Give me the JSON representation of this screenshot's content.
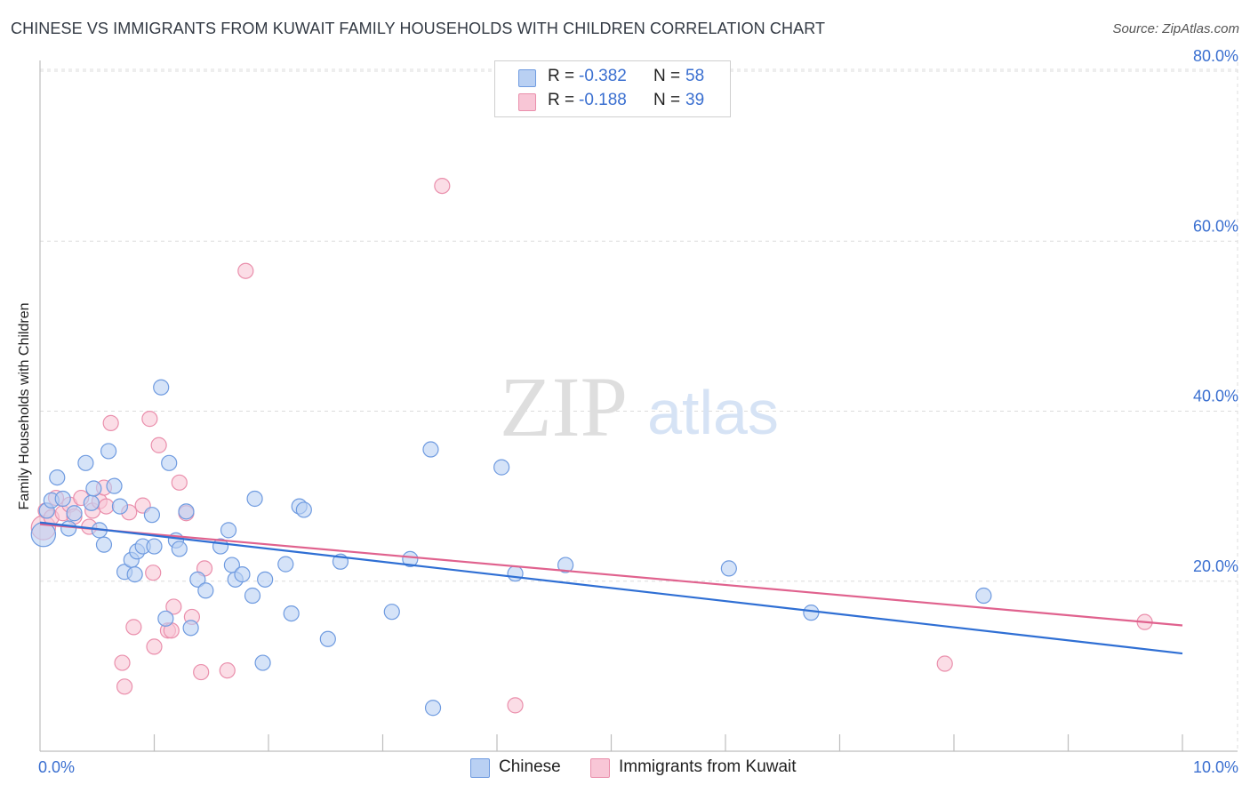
{
  "title": "CHINESE VS IMMIGRANTS FROM KUWAIT FAMILY HOUSEHOLDS WITH CHILDREN CORRELATION CHART",
  "source": "Source: ZipAtlas.com",
  "watermark": {
    "zip": "ZIP",
    "atlas": "atlas"
  },
  "legend": {
    "r_label": "R =",
    "n_label": "N =",
    "series": [
      {
        "name": "Chinese",
        "r": "-0.382",
        "n": "58",
        "fill": "#b9d0f3",
        "stroke": "#6f9be0"
      },
      {
        "name": "Immigrants from Kuwait",
        "r": "-0.188",
        "n": "39",
        "fill": "#f8c6d6",
        "stroke": "#ea8fac"
      }
    ]
  },
  "colors": {
    "blue_line": "#2f6fd4",
    "pink_line": "#e0628e",
    "axis_label": "#3a6fd0",
    "grid": "#dcdcdc"
  },
  "chart_data": {
    "type": "scatter",
    "title": "CHINESE VS IMMIGRANTS FROM KUWAIT FAMILY HOUSEHOLDS WITH CHILDREN CORRELATION CHART",
    "xlabel": "",
    "ylabel": "Family Households with Children",
    "xlim": [
      0,
      10
    ],
    "ylim": [
      0,
      80
    ],
    "x_tick_labels": [
      "0.0%",
      "10.0%"
    ],
    "y_ticks": [
      20,
      40,
      60,
      80
    ],
    "y_tick_labels": [
      "20.0%",
      "40.0%",
      "60.0%",
      "80.0%"
    ],
    "grid": true,
    "series": [
      {
        "name": "Chinese",
        "r": -0.382,
        "n": 58,
        "trend": {
          "x": [
            0,
            10
          ],
          "y": [
            26.9,
            11.5
          ]
        },
        "points": [
          [
            0.03,
            25.5,
            1.6
          ],
          [
            0.06,
            28.3,
            1
          ],
          [
            0.1,
            29.5,
            1
          ],
          [
            0.15,
            32.2,
            1
          ],
          [
            0.2,
            29.7,
            1
          ],
          [
            0.25,
            26.2,
            1
          ],
          [
            0.3,
            28.0,
            1
          ],
          [
            0.4,
            33.9,
            1
          ],
          [
            0.45,
            29.2,
            1
          ],
          [
            0.47,
            30.9,
            1
          ],
          [
            0.52,
            26.0,
            1
          ],
          [
            0.56,
            24.3,
            1
          ],
          [
            0.6,
            35.3,
            1
          ],
          [
            0.65,
            31.2,
            1
          ],
          [
            0.7,
            28.8,
            1
          ],
          [
            0.74,
            21.1,
            1
          ],
          [
            0.8,
            22.5,
            1
          ],
          [
            0.83,
            20.8,
            1
          ],
          [
            0.85,
            23.5,
            1
          ],
          [
            0.9,
            24.1,
            1
          ],
          [
            0.98,
            27.8,
            1
          ],
          [
            1.0,
            24.1,
            1
          ],
          [
            1.06,
            42.8,
            1
          ],
          [
            1.1,
            15.6,
            1
          ],
          [
            1.13,
            33.9,
            1
          ],
          [
            1.19,
            24.8,
            1
          ],
          [
            1.22,
            23.8,
            1
          ],
          [
            1.28,
            28.2,
            1
          ],
          [
            1.32,
            14.5,
            1
          ],
          [
            1.38,
            20.2,
            1
          ],
          [
            1.45,
            18.9,
            1
          ],
          [
            1.58,
            24.1,
            1
          ],
          [
            1.65,
            26.0,
            1
          ],
          [
            1.68,
            21.9,
            1
          ],
          [
            1.71,
            20.2,
            1
          ],
          [
            1.77,
            20.8,
            1
          ],
          [
            1.86,
            18.3,
            1
          ],
          [
            1.88,
            29.7,
            1
          ],
          [
            1.95,
            10.4,
            1
          ],
          [
            1.97,
            20.2,
            1
          ],
          [
            2.15,
            22.0,
            1
          ],
          [
            2.2,
            16.2,
            1
          ],
          [
            2.27,
            28.8,
            1
          ],
          [
            2.31,
            28.4,
            1
          ],
          [
            2.52,
            13.2,
            1
          ],
          [
            2.63,
            22.3,
            1
          ],
          [
            3.08,
            16.4,
            1
          ],
          [
            3.24,
            22.6,
            1
          ],
          [
            3.42,
            35.5,
            1
          ],
          [
            3.44,
            5.1,
            1
          ],
          [
            4.04,
            33.4,
            1
          ],
          [
            4.16,
            20.9,
            1
          ],
          [
            4.6,
            21.9,
            1
          ],
          [
            6.03,
            21.5,
            1
          ],
          [
            6.75,
            16.3,
            1
          ],
          [
            8.26,
            18.3,
            1
          ]
        ]
      },
      {
        "name": "Immigrants from Kuwait",
        "r": -0.188,
        "n": 39,
        "trend": {
          "x": [
            0,
            10
          ],
          "y": [
            26.7,
            14.8
          ]
        },
        "points": [
          [
            0.03,
            26.3,
            1.6
          ],
          [
            0.05,
            28.3,
            1
          ],
          [
            0.1,
            27.5,
            1
          ],
          [
            0.14,
            29.8,
            1
          ],
          [
            0.2,
            28.0,
            1
          ],
          [
            0.26,
            29.0,
            1
          ],
          [
            0.3,
            27.6,
            1
          ],
          [
            0.36,
            29.8,
            1
          ],
          [
            0.43,
            26.4,
            1
          ],
          [
            0.46,
            28.3,
            1
          ],
          [
            0.52,
            29.4,
            1
          ],
          [
            0.56,
            31.0,
            1
          ],
          [
            0.58,
            28.8,
            1
          ],
          [
            0.62,
            38.6,
            1
          ],
          [
            0.72,
            10.4,
            1
          ],
          [
            0.74,
            7.6,
            1
          ],
          [
            0.78,
            28.1,
            1
          ],
          [
            0.82,
            14.6,
            1
          ],
          [
            0.9,
            28.9,
            1
          ],
          [
            0.96,
            39.1,
            1
          ],
          [
            0.99,
            21.0,
            1
          ],
          [
            1.0,
            12.3,
            1
          ],
          [
            1.04,
            36.0,
            1
          ],
          [
            1.12,
            14.2,
            1
          ],
          [
            1.15,
            14.2,
            1
          ],
          [
            1.17,
            17.0,
            1
          ],
          [
            1.22,
            31.6,
            1
          ],
          [
            1.28,
            28.0,
            1
          ],
          [
            1.33,
            15.8,
            1
          ],
          [
            1.41,
            9.3,
            1
          ],
          [
            1.44,
            21.5,
            1
          ],
          [
            1.64,
            9.5,
            1
          ],
          [
            1.8,
            56.5,
            1
          ],
          [
            3.52,
            66.5,
            1
          ],
          [
            4.16,
            5.4,
            1
          ],
          [
            7.92,
            10.3,
            1
          ],
          [
            9.67,
            15.2,
            1
          ]
        ]
      }
    ]
  }
}
